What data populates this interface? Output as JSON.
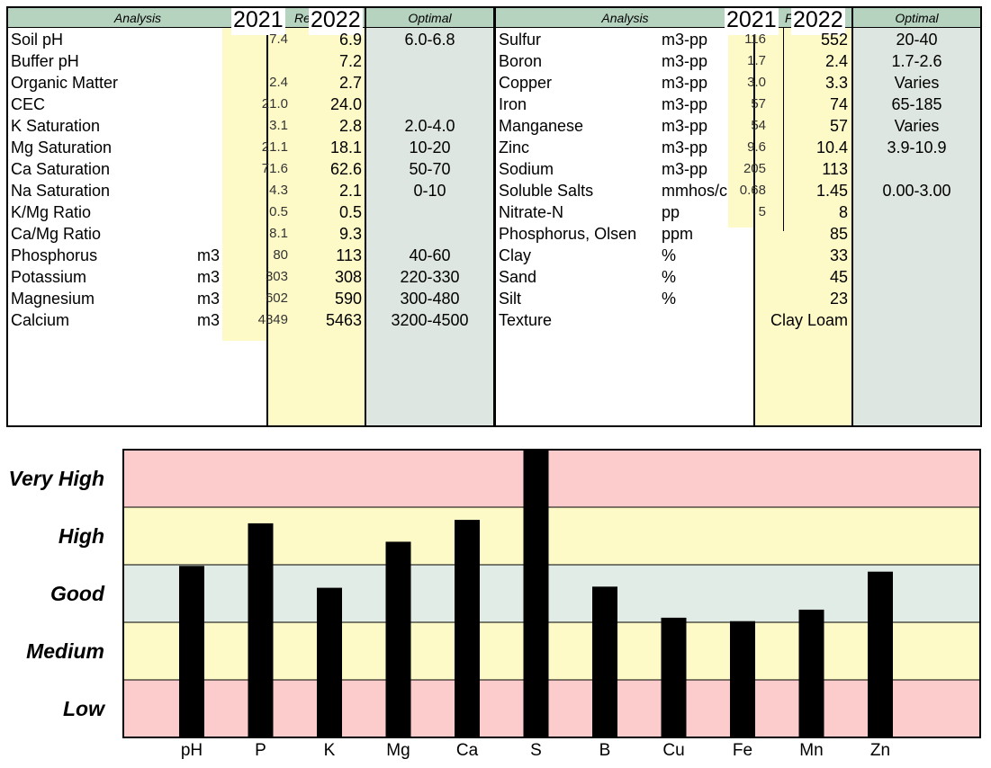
{
  "left_table": {
    "header_analysis": "Analysis",
    "header_result_clipped": "Re",
    "header_optimal": "Optimal",
    "year_2021": "2021",
    "year_2022": "2022",
    "rows": [
      {
        "name": "Soil pH",
        "unit": "",
        "v2021": "7.4",
        "v2022": "6.9",
        "optimal": "6.0-6.8"
      },
      {
        "name": "Buffer pH",
        "unit": "",
        "v2021": "",
        "v2022": "7.2",
        "optimal": ""
      },
      {
        "name": "Organic Matter",
        "unit": "",
        "v2021": "2.4",
        "v2022": "2.7",
        "optimal": ""
      },
      {
        "name": "CEC",
        "unit": "",
        "v2021": "21.0",
        "v2022": "24.0",
        "optimal": ""
      },
      {
        "name": "K Saturation",
        "unit": "",
        "v2021": "3.1",
        "v2022": "2.8",
        "optimal": "2.0-4.0"
      },
      {
        "name": "Mg Saturation",
        "unit": "",
        "v2021": "21.1",
        "v2022": "18.1",
        "optimal": "10-20"
      },
      {
        "name": "Ca Saturation",
        "unit": "",
        "v2021": "71.6",
        "v2022": "62.6",
        "optimal": "50-70"
      },
      {
        "name": "Na Saturation",
        "unit": "",
        "v2021": "4.3",
        "v2022": "2.1",
        "optimal": "0-10"
      },
      {
        "name": "K/Mg Ratio",
        "unit": "",
        "v2021": "0.5",
        "v2022": "0.5",
        "optimal": ""
      },
      {
        "name": "Ca/Mg Ratio",
        "unit": "",
        "v2021": "8.1",
        "v2022": "9.3",
        "optimal": ""
      },
      {
        "name": "Phosphorus",
        "unit": "m3",
        "v2021": "80",
        "v2022": "113",
        "optimal": "40-60"
      },
      {
        "name": "Potassium",
        "unit": "m3",
        "v2021": "303",
        "v2022": "308",
        "optimal": "220-330"
      },
      {
        "name": "Magnesium",
        "unit": "m3",
        "v2021": "602",
        "v2022": "590",
        "optimal": "300-480"
      },
      {
        "name": "Calcium",
        "unit": "m3",
        "v2021": "4849",
        "v2022": "5463",
        "optimal": "3200-4500"
      }
    ]
  },
  "right_table": {
    "header_analysis": "Analysis",
    "header_result_clipped": "F",
    "header_optimal": "Optimal",
    "year_2021": "2021",
    "year_2022": "2022",
    "rows": [
      {
        "name": "Sulfur",
        "unit": "m3-pp",
        "v2021": "116",
        "v2022": "552",
        "optimal": "20-40"
      },
      {
        "name": "Boron",
        "unit": "m3-pp",
        "v2021": "1.7",
        "v2022": "2.4",
        "optimal": "1.7-2.6"
      },
      {
        "name": "Copper",
        "unit": "m3-pp",
        "v2021": "3.0",
        "v2022": "3.3",
        "optimal": "Varies"
      },
      {
        "name": "Iron",
        "unit": "m3-pp",
        "v2021": "57",
        "v2022": "74",
        "optimal": "65-185"
      },
      {
        "name": "Manganese",
        "unit": "m3-pp",
        "v2021": "54",
        "v2022": "57",
        "optimal": "Varies"
      },
      {
        "name": "Zinc",
        "unit": "m3-pp",
        "v2021": "9.6",
        "v2022": "10.4",
        "optimal": "3.9-10.9"
      },
      {
        "name": "Sodium",
        "unit": "m3-pp",
        "v2021": "205",
        "v2022": "113",
        "optimal": ""
      },
      {
        "name": "Soluble Salts",
        "unit": "mmhos/c",
        "v2021": "0.68",
        "v2022": "1.45",
        "optimal": "0.00-3.00"
      },
      {
        "name": "Nitrate-N",
        "unit": "pp",
        "v2021": "5",
        "v2022": "8",
        "optimal": ""
      },
      {
        "name": "Phosphorus, Olsen",
        "unit": "ppm",
        "v2021": "",
        "v2022": "85",
        "optimal": ""
      },
      {
        "name": "Clay",
        "unit": "%",
        "v2021": "",
        "v2022": "33",
        "optimal": ""
      },
      {
        "name": "Sand",
        "unit": "%",
        "v2021": "",
        "v2022": "45",
        "optimal": ""
      },
      {
        "name": "Silt",
        "unit": "%",
        "v2021": "",
        "v2022": "23",
        "optimal": ""
      },
      {
        "name": "Texture",
        "unit": "",
        "v2021": "",
        "v2022": "Clay Loam",
        "optimal": ""
      }
    ]
  },
  "chart_data": {
    "type": "bar",
    "categories": [
      "pH",
      "P",
      "K",
      "Mg",
      "Ca",
      "S",
      "B",
      "Cu",
      "Fe",
      "Mn",
      "Zn"
    ],
    "values": [
      2.98,
      3.72,
      2.6,
      3.4,
      3.78,
      5.0,
      2.62,
      2.08,
      2.02,
      2.22,
      2.88
    ],
    "levels": [
      "Low",
      "Medium",
      "Good",
      "High",
      "Very High"
    ],
    "ylim": [
      0,
      5
    ],
    "band_colors": [
      "#fccccc",
      "#fefac8",
      "#e2ece6",
      "#fefac8",
      "#fccccc"
    ],
    "bar_color": "#000000"
  }
}
